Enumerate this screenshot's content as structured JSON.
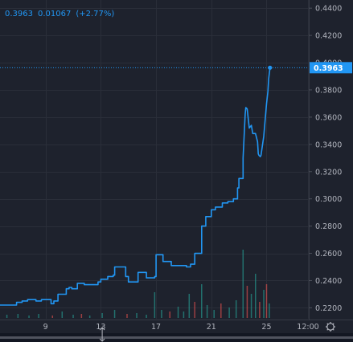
{
  "legend": {
    "price": "0.3963",
    "change": "0.01067",
    "change_pct": "(+2.77%)"
  },
  "colors": {
    "background": "#1e222d",
    "grid": "#2a2e39",
    "line": "#2196f3",
    "axis_text": "#b2b5be",
    "volume_up": "#26a69a",
    "volume_down": "#ef5350",
    "badge_text": "#ffffff"
  },
  "chart_data": {
    "type": "line",
    "title": "",
    "xlabel": "",
    "ylabel": "",
    "last_value_label": "0.3963",
    "ylim": [
      0.212,
      0.446
    ],
    "x_ticks": [
      {
        "label": "9",
        "x": 9
      },
      {
        "label": "13",
        "x": 13
      },
      {
        "label": "17",
        "x": 17
      },
      {
        "label": "21",
        "x": 21
      },
      {
        "label": "25",
        "x": 25
      },
      {
        "label": "12:00",
        "x": 28
      }
    ],
    "y_ticks": [
      "0.2200",
      "0.2400",
      "0.2600",
      "0.2800",
      "0.3000",
      "0.3200",
      "0.3400",
      "0.3600",
      "0.3800",
      "0.4000",
      "0.4200",
      "0.4400"
    ],
    "y_tick_values": [
      0.22,
      0.24,
      0.26,
      0.28,
      0.3,
      0.32,
      0.34,
      0.36,
      0.38,
      0.4,
      0.42,
      0.44
    ],
    "xlim": [
      5.7,
      28.0
    ],
    "series": [
      {
        "x": [
          5.7,
          6.9,
          6.9,
          7.3,
          7.3,
          7.7,
          7.7,
          8.3,
          8.3,
          8.7,
          8.7,
          9.4,
          9.4,
          9.6,
          9.6,
          9.9,
          9.9,
          10.5,
          10.5,
          10.7,
          10.7,
          10.9,
          10.9,
          11.3,
          11.3,
          11.8,
          11.8,
          12.8,
          12.8,
          13.0,
          13.0,
          13.5,
          13.5,
          13.9,
          13.9,
          14.0,
          14.0,
          14.8,
          14.8,
          15.0,
          15.0,
          15.7,
          15.7,
          16.3,
          16.3,
          16.9,
          16.9,
          17.0,
          17.0,
          17.5,
          17.5,
          18.1,
          18.1,
          19.2,
          19.2,
          19.5,
          19.5,
          19.8,
          19.8,
          20.3,
          20.3,
          20.6,
          20.6,
          21.0,
          21.0,
          21.3,
          21.3,
          21.8,
          21.8,
          22.2,
          22.2,
          22.6,
          22.6,
          22.9,
          22.9,
          23.0,
          23.0,
          23.3,
          23.3,
          23.45,
          23.5,
          23.6,
          23.75,
          23.9,
          24.0,
          24.2,
          24.35,
          24.4,
          24.45,
          24.55,
          24.6,
          24.8,
          25.0,
          25.1,
          25.15,
          25.25
        ],
        "y": [
          0.222,
          0.222,
          0.224,
          0.224,
          0.225,
          0.225,
          0.226,
          0.226,
          0.225,
          0.225,
          0.226,
          0.226,
          0.223,
          0.223,
          0.225,
          0.225,
          0.23,
          0.23,
          0.234,
          0.234,
          0.235,
          0.235,
          0.234,
          0.234,
          0.238,
          0.238,
          0.237,
          0.237,
          0.239,
          0.239,
          0.241,
          0.241,
          0.243,
          0.243,
          0.244,
          0.244,
          0.25,
          0.25,
          0.243,
          0.243,
          0.239,
          0.239,
          0.246,
          0.246,
          0.242,
          0.242,
          0.243,
          0.243,
          0.259,
          0.259,
          0.254,
          0.254,
          0.251,
          0.251,
          0.25,
          0.25,
          0.252,
          0.252,
          0.26,
          0.26,
          0.28,
          0.28,
          0.287,
          0.287,
          0.292,
          0.292,
          0.294,
          0.294,
          0.297,
          0.297,
          0.298,
          0.298,
          0.3,
          0.3,
          0.308,
          0.308,
          0.315,
          0.315,
          0.33,
          0.362,
          0.367,
          0.366,
          0.352,
          0.354,
          0.348,
          0.348,
          0.342,
          0.333,
          0.332,
          0.331,
          0.332,
          0.346,
          0.37,
          0.379,
          0.388,
          0.3963
        ]
      }
    ],
    "volume": [
      {
        "x": 6.2,
        "v": 0.04,
        "up": true
      },
      {
        "x": 7.0,
        "v": 0.05,
        "up": true
      },
      {
        "x": 7.8,
        "v": 0.03,
        "up": true
      },
      {
        "x": 8.5,
        "v": 0.05,
        "up": true
      },
      {
        "x": 9.5,
        "v": 0.03,
        "up": false
      },
      {
        "x": 10.2,
        "v": 0.08,
        "up": true
      },
      {
        "x": 11.0,
        "v": 0.04,
        "up": true
      },
      {
        "x": 11.6,
        "v": 0.05,
        "up": false
      },
      {
        "x": 12.2,
        "v": 0.03,
        "up": true
      },
      {
        "x": 13.1,
        "v": 0.06,
        "up": true
      },
      {
        "x": 14.0,
        "v": 0.1,
        "up": true
      },
      {
        "x": 14.9,
        "v": 0.05,
        "up": false
      },
      {
        "x": 15.6,
        "v": 0.06,
        "up": true
      },
      {
        "x": 16.3,
        "v": 0.04,
        "up": true
      },
      {
        "x": 16.9,
        "v": 0.32,
        "up": true
      },
      {
        "x": 17.4,
        "v": 0.1,
        "up": true
      },
      {
        "x": 18.0,
        "v": 0.08,
        "up": false
      },
      {
        "x": 18.6,
        "v": 0.14,
        "up": true
      },
      {
        "x": 19.0,
        "v": 0.08,
        "up": true
      },
      {
        "x": 19.4,
        "v": 0.3,
        "up": true
      },
      {
        "x": 19.8,
        "v": 0.2,
        "up": false
      },
      {
        "x": 20.3,
        "v": 0.42,
        "up": true
      },
      {
        "x": 20.7,
        "v": 0.16,
        "up": true
      },
      {
        "x": 21.2,
        "v": 0.1,
        "up": true
      },
      {
        "x": 21.7,
        "v": 0.18,
        "up": false
      },
      {
        "x": 22.3,
        "v": 0.13,
        "up": true
      },
      {
        "x": 22.8,
        "v": 0.22,
        "up": true
      },
      {
        "x": 23.3,
        "v": 0.85,
        "up": true
      },
      {
        "x": 23.6,
        "v": 0.4,
        "up": false
      },
      {
        "x": 23.9,
        "v": 0.3,
        "up": true
      },
      {
        "x": 24.2,
        "v": 0.55,
        "up": true
      },
      {
        "x": 24.5,
        "v": 0.2,
        "up": false
      },
      {
        "x": 24.8,
        "v": 0.35,
        "up": true
      },
      {
        "x": 25.0,
        "v": 0.42,
        "up": false
      },
      {
        "x": 25.2,
        "v": 0.18,
        "up": true
      }
    ]
  }
}
